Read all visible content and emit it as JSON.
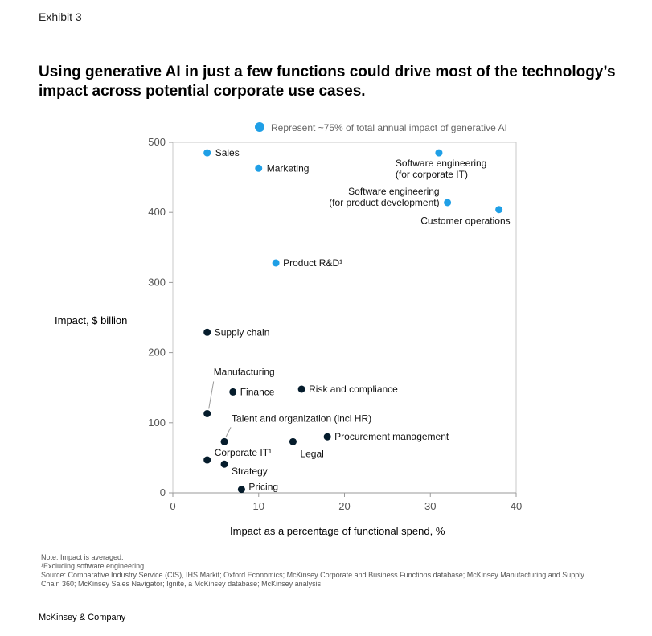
{
  "header": {
    "exhibit": "Exhibit 3",
    "title": "Using generative AI in just a few functions could drive most of the technology’s impact across potential corporate use cases."
  },
  "chart_data": {
    "type": "scatter",
    "title": "Using generative AI in just a few functions could drive most of the technology’s impact across potential corporate use cases.",
    "xlabel": "Impact as a percentage of functional spend, %",
    "ylabel": "Impact, $ billion",
    "xlim": [
      0,
      40
    ],
    "ylim": [
      0,
      500
    ],
    "x_ticks": [
      "0",
      "10",
      "20",
      "30",
      "40"
    ],
    "y_ticks": [
      "0",
      "100",
      "200",
      "300",
      "400",
      "500"
    ],
    "grid": false,
    "legend": {
      "placement": "top",
      "label": "Represent ~75% of total annual impact of generative AI",
      "color": "#1f9fe6"
    },
    "colors": {
      "highlight": "#1f9fe6",
      "other": "#051c2c"
    },
    "points": [
      {
        "label": "Sales",
        "x": 4,
        "y": 485,
        "highlight": true
      },
      {
        "label": "Marketing",
        "x": 10,
        "y": 463,
        "highlight": true
      },
      {
        "label": "Software engineering\n(for corporate IT)",
        "x": 31,
        "y": 485,
        "highlight": true
      },
      {
        "label": "Software engineering\n(for product development)",
        "x": 32,
        "y": 414,
        "highlight": true
      },
      {
        "label": "Customer operations",
        "x": 38,
        "y": 404,
        "highlight": true
      },
      {
        "label": "Product R&D¹",
        "x": 12,
        "y": 328,
        "highlight": true
      },
      {
        "label": "Supply chain",
        "x": 4,
        "y": 229,
        "highlight": false
      },
      {
        "label": "Manufacturing",
        "x": 4,
        "y": 113,
        "highlight": false
      },
      {
        "label": "Finance",
        "x": 7,
        "y": 144,
        "highlight": false
      },
      {
        "label": "Risk and compliance",
        "x": 15,
        "y": 148,
        "highlight": false
      },
      {
        "label": "Talent and organization (incl HR)",
        "x": 6,
        "y": 73,
        "highlight": false
      },
      {
        "label": "Legal",
        "x": 14,
        "y": 73,
        "highlight": false
      },
      {
        "label": "Procurement management",
        "x": 18,
        "y": 80,
        "highlight": false
      },
      {
        "label": "Corporate IT¹",
        "x": 4,
        "y": 47,
        "highlight": false
      },
      {
        "label": "Strategy",
        "x": 6,
        "y": 41,
        "highlight": false
      },
      {
        "label": "Pricing",
        "x": 8,
        "y": 5,
        "highlight": false
      }
    ]
  },
  "notes": {
    "note": "Note: Impact is averaged.",
    "footnote": "¹Excluding software engineering.",
    "source": "Source: Comparative Industry Service (CIS), IHS Markit; Oxford Economics; McKinsey Corporate and Business Functions database; McKinsey Manufacturing and Supply Chain 360; McKinsey Sales Navigator; Ignite, a McKinsey database; McKinsey analysis"
  },
  "footer": {
    "brand": "McKinsey & Company"
  }
}
